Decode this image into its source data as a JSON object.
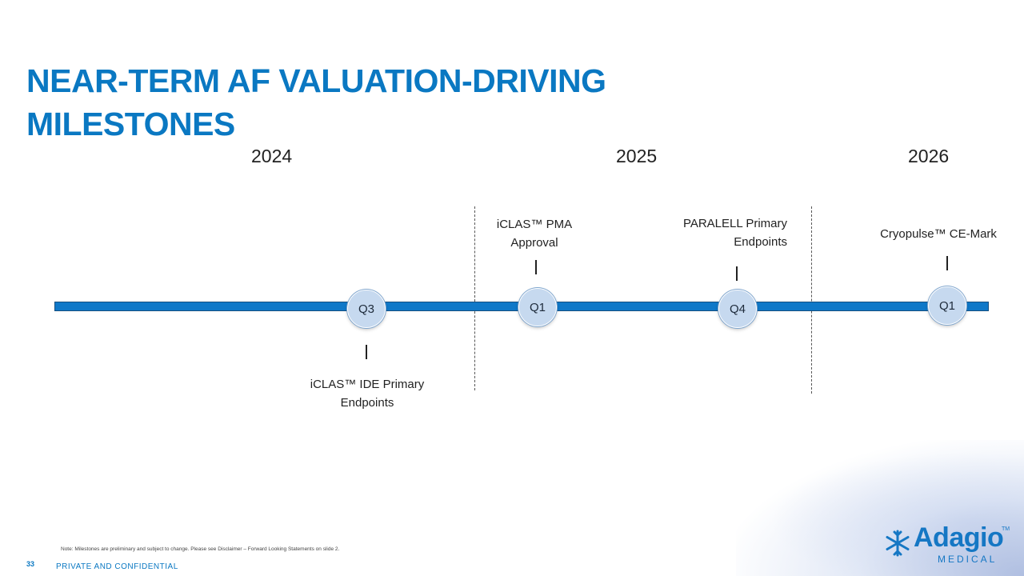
{
  "title": {
    "line1": "NEAR-TERM AF VALUATION-DRIVING",
    "line2": "MILESTONES"
  },
  "years": [
    "2024",
    "2025",
    "2026"
  ],
  "milestones": [
    {
      "quarter": "Q3",
      "label_line1": "iCLAS™ IDE Primary",
      "label_line2": "Endpoints",
      "position": "below"
    },
    {
      "quarter": "Q1",
      "label_line1": "iCLAS™ PMA",
      "label_line2": "Approval",
      "position": "above"
    },
    {
      "quarter": "Q4",
      "label_line1": "PARALELL Primary",
      "label_line2": "Endpoints",
      "position": "above"
    },
    {
      "quarter": "Q1",
      "label_line1": "Cryopulse™ CE-Mark",
      "label_line2": "",
      "position": "above"
    }
  ],
  "footer": {
    "note": "Note: Milestones are preliminary and subject to change. Please see Disclaimer – Forward Looking Statements on slide 2.",
    "page_number": "33",
    "confidential": "PRIVATE AND CONFIDENTIAL"
  },
  "logo": {
    "name": "Adagio",
    "sub": "MEDICAL",
    "tm": "TM",
    "icon": "snowflake-icon"
  },
  "colors": {
    "title": "#0a78c2",
    "track": "#0f78c8",
    "node": "#c6d9ef"
  }
}
